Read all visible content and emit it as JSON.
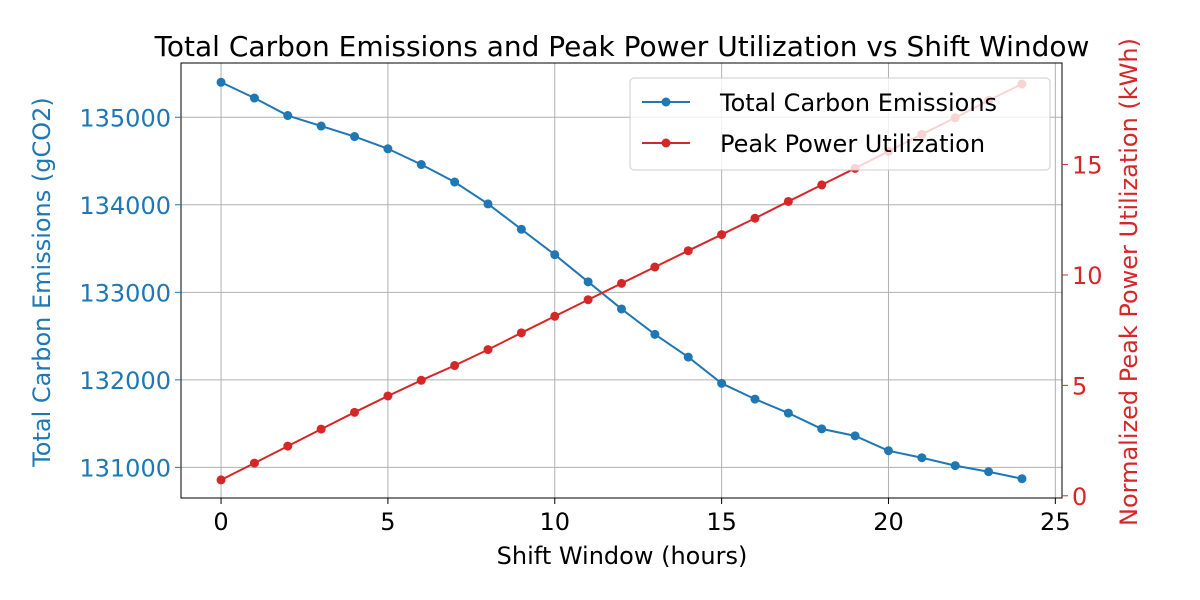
{
  "chart_data": {
    "type": "line",
    "title": "Total Carbon Emissions and Peak Power Utilization vs Shift Window",
    "xlabel": "Shift Window (hours)",
    "ylabel_left": "Total Carbon Emissions (gCO2)",
    "ylabel_right": "Normalized Peak Power Utilization (kWh)",
    "x": [
      0,
      1,
      2,
      3,
      4,
      5,
      6,
      7,
      8,
      9,
      10,
      11,
      12,
      13,
      14,
      15,
      16,
      17,
      18,
      19,
      20,
      21,
      22,
      23,
      24
    ],
    "xlim": [
      -1.2,
      25.2
    ],
    "xticks": [
      0,
      5,
      10,
      15,
      20,
      25
    ],
    "ylim_left": [
      130650,
      135620
    ],
    "yticks_left": [
      131000,
      132000,
      133000,
      134000,
      135000
    ],
    "ylim_right": [
      -0.1,
      19.6
    ],
    "yticks_right": [
      0,
      5,
      10,
      15
    ],
    "grid": true,
    "legend_position": "top-right",
    "series": [
      {
        "name": "Total Carbon Emissions",
        "axis": "left",
        "color": "#1f77b4",
        "values": [
          135400,
          135220,
          135020,
          134900,
          134780,
          134640,
          134460,
          134260,
          134010,
          133720,
          133430,
          133120,
          132810,
          132520,
          132260,
          131960,
          131780,
          131620,
          131440,
          131360,
          131190,
          131110,
          131020,
          130950,
          130870
        ]
      },
      {
        "name": "Peak Power Utilization",
        "axis": "right",
        "color": "#d62728",
        "values": [
          0.72,
          1.48,
          2.25,
          3.02,
          3.78,
          4.52,
          5.23,
          5.9,
          6.62,
          7.38,
          8.13,
          8.88,
          9.62,
          10.36,
          11.1,
          11.83,
          12.57,
          13.33,
          14.08,
          14.83,
          15.6,
          16.37,
          17.12,
          17.9,
          18.65
        ]
      }
    ]
  }
}
